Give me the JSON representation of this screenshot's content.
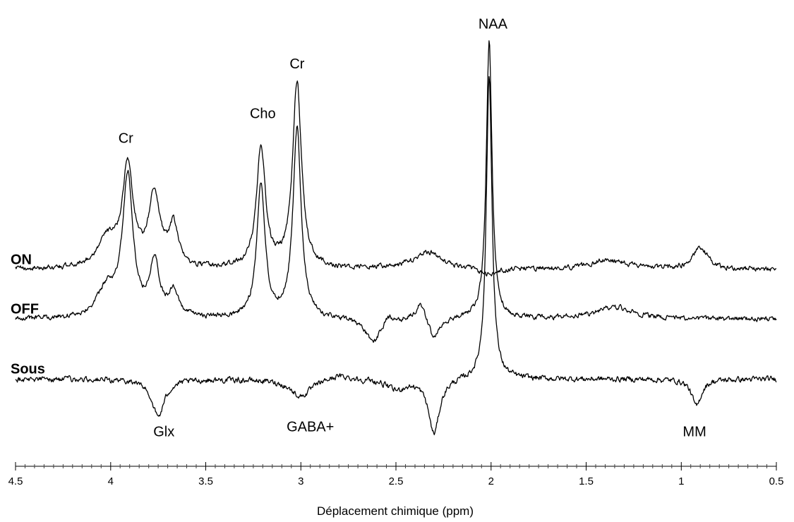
{
  "chart_data": {
    "type": "line",
    "xlabel": "Déplacement chimique (ppm)",
    "xlim": [
      4.5,
      0.5
    ],
    "x_reversed": true,
    "x_ticks": [
      4.5,
      4,
      3.5,
      3,
      2.5,
      2,
      1.5,
      1,
      0.5
    ],
    "x_tick_labels": [
      "4.5",
      "4",
      "3.5",
      "3",
      "2.5",
      "2",
      "1.5",
      "1",
      "0.5"
    ],
    "y_axis_shown": false,
    "grid": false,
    "ylim": [
      -1.6,
      7.2
    ],
    "series": [
      {
        "name": "ON",
        "baseline": 2.2,
        "noise": 0.08,
        "peaks": [
          {
            "ppm": 4.02,
            "amp": 0.55,
            "width": 0.06
          },
          {
            "ppm": 3.91,
            "amp": 2.0,
            "width": 0.035
          },
          {
            "ppm": 3.77,
            "amp": 1.45,
            "width": 0.035
          },
          {
            "ppm": 3.67,
            "amp": 0.8,
            "width": 0.03
          },
          {
            "ppm": 3.21,
            "amp": 2.45,
            "width": 0.028
          },
          {
            "ppm": 3.02,
            "amp": 3.75,
            "width": 0.028
          },
          {
            "ppm": 2.33,
            "amp": 0.35,
            "width": 0.09
          },
          {
            "ppm": 2.01,
            "amp": -0.15,
            "width": 0.05
          },
          {
            "ppm": 1.38,
            "amp": 0.2,
            "width": 0.12
          },
          {
            "ppm": 0.9,
            "amp": 0.45,
            "width": 0.045
          }
        ]
      },
      {
        "name": "OFF",
        "baseline": 1.2,
        "noise": 0.08,
        "peaks": [
          {
            "ppm": 4.02,
            "amp": 0.55,
            "width": 0.06
          },
          {
            "ppm": 3.91,
            "amp": 2.8,
            "width": 0.033
          },
          {
            "ppm": 3.77,
            "amp": 1.1,
            "width": 0.03
          },
          {
            "ppm": 3.67,
            "amp": 0.5,
            "width": 0.03
          },
          {
            "ppm": 3.21,
            "amp": 2.7,
            "width": 0.026
          },
          {
            "ppm": 3.02,
            "amp": 3.8,
            "width": 0.026
          },
          {
            "ppm": 2.62,
            "amp": -0.5,
            "width": 0.05
          },
          {
            "ppm": 2.54,
            "amp": 0.15,
            "width": 0.03
          },
          {
            "ppm": 2.37,
            "amp": 0.35,
            "width": 0.03
          },
          {
            "ppm": 2.3,
            "amp": -0.45,
            "width": 0.03
          },
          {
            "ppm": 2.01,
            "amp": 5.6,
            "width": 0.018
          },
          {
            "ppm": 1.35,
            "amp": 0.25,
            "width": 0.12
          }
        ]
      },
      {
        "name": "Sous",
        "baseline": 0.0,
        "noise": 0.09,
        "peaks": [
          {
            "ppm": 3.75,
            "amp": -0.75,
            "width": 0.04
          },
          {
            "ppm": 3.0,
            "amp": -0.35,
            "width": 0.07
          },
          {
            "ppm": 2.8,
            "amp": 0.1,
            "width": 0.08
          },
          {
            "ppm": 2.5,
            "amp": -0.2,
            "width": 0.06
          },
          {
            "ppm": 2.3,
            "amp": -1.1,
            "width": 0.035
          },
          {
            "ppm": 2.01,
            "amp": 6.1,
            "width": 0.018
          },
          {
            "ppm": 0.92,
            "amp": -0.55,
            "width": 0.03
          }
        ]
      }
    ],
    "annotations": [
      {
        "text": "Cr",
        "ppm": 3.92,
        "y": 4.75
      },
      {
        "text": "Cho",
        "ppm": 3.2,
        "y": 5.25
      },
      {
        "text": "Cr",
        "ppm": 3.02,
        "y": 6.25
      },
      {
        "text": "NAA",
        "ppm": 1.99,
        "y": 7.05
      },
      {
        "text": "Glx",
        "ppm": 3.72,
        "y": -1.15
      },
      {
        "text": "GABA+",
        "ppm": 2.95,
        "y": -1.05
      },
      {
        "text": "MM",
        "ppm": 0.93,
        "y": -1.15
      }
    ]
  }
}
